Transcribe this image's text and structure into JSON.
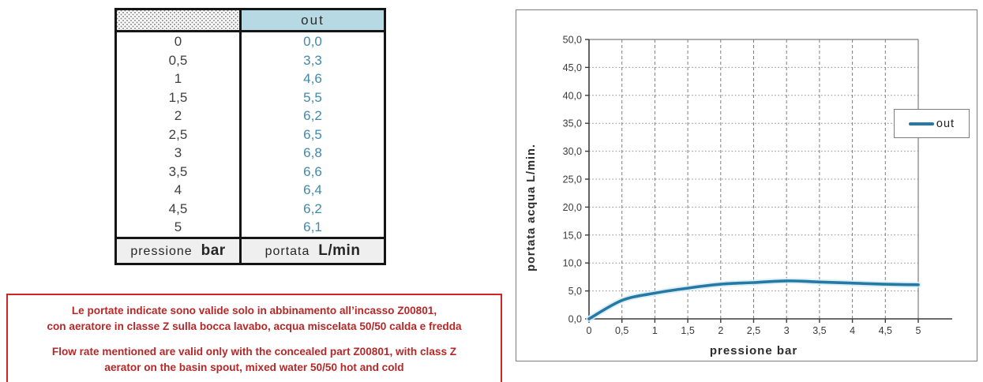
{
  "table": {
    "header": {
      "right": "out"
    },
    "rows": [
      {
        "pressure": "0",
        "flow": "0,0"
      },
      {
        "pressure": "0,5",
        "flow": "3,3"
      },
      {
        "pressure": "1",
        "flow": "4,6"
      },
      {
        "pressure": "1,5",
        "flow": "5,5"
      },
      {
        "pressure": "2",
        "flow": "6,2"
      },
      {
        "pressure": "2,5",
        "flow": "6,5"
      },
      {
        "pressure": "3",
        "flow": "6,8"
      },
      {
        "pressure": "3,5",
        "flow": "6,6"
      },
      {
        "pressure": "4",
        "flow": "6,4"
      },
      {
        "pressure": "4,5",
        "flow": "6,2"
      },
      {
        "pressure": "5",
        "flow": "6,1"
      }
    ],
    "footer": {
      "left_label": "pressione",
      "left_unit": "bar",
      "right_label": "portata",
      "right_unit": "L/min"
    }
  },
  "note": {
    "it_line1": "Le portate indicate sono valide solo in abbinamento all’incasso Z00801,",
    "it_line2": "con aeratore in classe Z sulla bocca lavabo, acqua miscelata 50/50 calda e fredda",
    "en_line1": "Flow rate mentioned are valid only with the concealed part Z00801, with class Z",
    "en_line2": "aerator on the basin spout, mixed water 50/50 hot and cold"
  },
  "chart_data": {
    "type": "line",
    "x": [
      0,
      0.5,
      1,
      1.5,
      2,
      2.5,
      3,
      3.5,
      4,
      4.5,
      5
    ],
    "series": [
      {
        "name": "out",
        "values": [
          0,
          3.3,
          4.6,
          5.5,
          6.2,
          6.5,
          6.8,
          6.6,
          6.4,
          6.2,
          6.1
        ]
      }
    ],
    "title": "",
    "xlabel": "pressione bar",
    "ylabel": "portata acqua  L/min.",
    "xlim": [
      0,
      5
    ],
    "ylim": [
      0,
      50
    ],
    "x_ticks": [
      0,
      0.5,
      1,
      1.5,
      2,
      2.5,
      3,
      3.5,
      4,
      4.5,
      5
    ],
    "x_tick_labels": [
      "0",
      "0,5",
      "1",
      "1,5",
      "2",
      "2,5",
      "3",
      "3,5",
      "4",
      "4,5",
      "5"
    ],
    "y_ticks": [
      0,
      5,
      10,
      15,
      20,
      25,
      30,
      35,
      40,
      45,
      50
    ],
    "y_tick_labels": [
      "0,0",
      "5,0",
      "10,0",
      "15,0",
      "20,0",
      "25,0",
      "30,0",
      "35,0",
      "40,0",
      "45,0",
      "50,0"
    ],
    "grid": true,
    "legend": {
      "label": "out",
      "position": "right"
    },
    "line_color": "#2679a4"
  },
  "colors": {
    "accent_blue": "#2679a4",
    "table_value_blue": "#4189ad",
    "header_blue_bg": "#b7d9e3",
    "footer_gray_bg": "#efefef",
    "note_red_border": "#d32424",
    "note_red_text": "#b52828"
  }
}
